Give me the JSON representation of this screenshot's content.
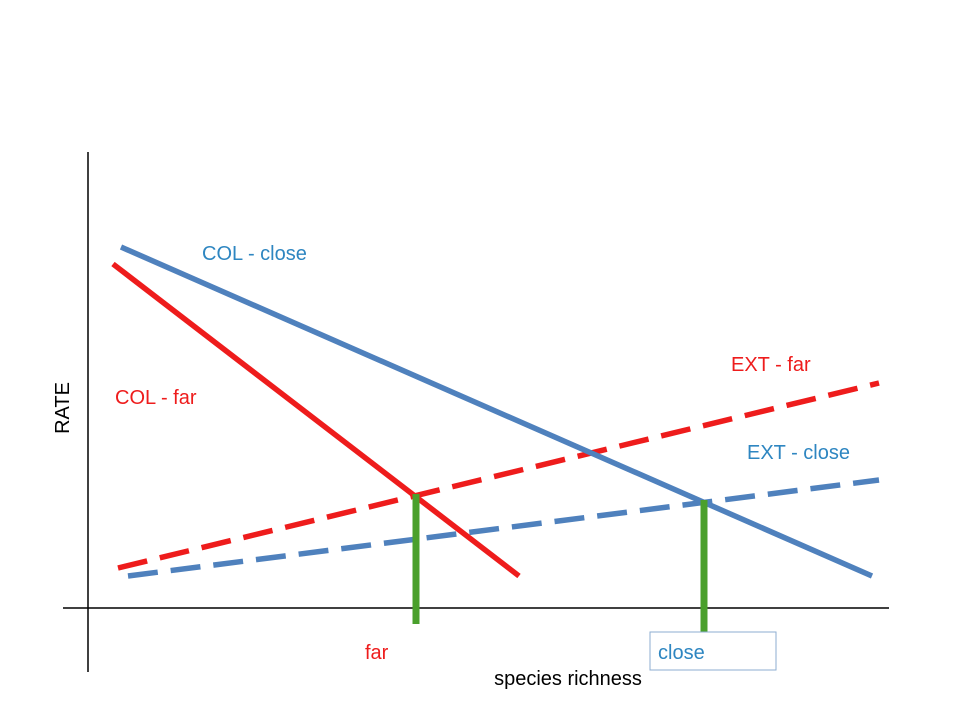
{
  "diagram": {
    "y_axis_label": "RATE",
    "x_axis_label": "species richness",
    "lines": {
      "col_close": {
        "label": "COL - close",
        "style": "solid",
        "color": "#4f81bd"
      },
      "col_far": {
        "label": "COL - far",
        "style": "solid",
        "color": "#ee1c1c"
      },
      "ext_far": {
        "label": "EXT - far",
        "style": "dashed",
        "color": "#ee1c1c"
      },
      "ext_close": {
        "label": "EXT - close",
        "style": "dashed",
        "color": "#4f81bd"
      }
    },
    "equilibrium_markers": {
      "far": {
        "label": "far",
        "color": "#4aa02c"
      },
      "close": {
        "label": "close",
        "color": "#4aa02c"
      }
    },
    "colors": {
      "axis": "#000000",
      "label_blue": "#2e86c1",
      "label_red": "#ee1c1c"
    }
  }
}
